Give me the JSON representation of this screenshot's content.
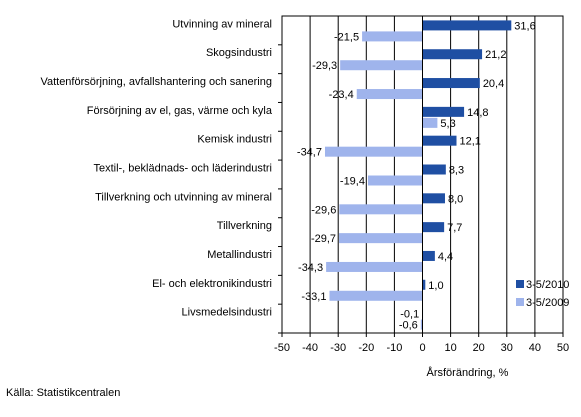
{
  "chart_data": {
    "type": "bar",
    "orientation": "horizontal",
    "categories": [
      "Utvinning av mineral",
      "Skogsindustri",
      "Vattenförsörjning, avfallshantering och sanering",
      "Försörjning av el, gas, värme och kyla",
      "Kemisk industri",
      "Textil-, beklädnads- och läderindustri",
      "Tillverkning och utvinning av mineral",
      "Tillverkning",
      "Metallindustri",
      "El- och elektronikindustri",
      "Livsmedelsindustri"
    ],
    "series": [
      {
        "name": "3-5/2010",
        "color": "#1f4fa3",
        "values": [
          31.6,
          21.2,
          20.4,
          14.8,
          12.1,
          8.3,
          8.0,
          7.7,
          4.4,
          1.0,
          -0.1
        ],
        "labels": [
          "31,6",
          "21,2",
          "20,4",
          "14,8",
          "12,1",
          "8,3",
          "8,0",
          "7,7",
          "4,4",
          "1,0",
          "-0,1"
        ]
      },
      {
        "name": "3-5/2009",
        "color": "#9fb4ec",
        "values": [
          -21.5,
          -29.3,
          -23.4,
          5.3,
          -34.7,
          -19.4,
          -29.6,
          -29.7,
          -34.3,
          -33.1,
          -0.6
        ],
        "labels": [
          "-21,5",
          "-29,3",
          "-23,4",
          "5,3",
          "-34,7",
          "-19,4",
          "-29,6",
          "-29,7",
          "-34,3",
          "-33,1",
          "-0,6"
        ]
      }
    ],
    "xlabel": "Årsförändring, %",
    "xlim": [
      -50,
      50
    ],
    "xticks": [
      -50,
      -40,
      -30,
      -20,
      -10,
      0,
      10,
      20,
      30,
      40,
      50
    ],
    "grid": "vertical",
    "legend": "bottom-right"
  },
  "source": "Källa: Statistikcentralen"
}
